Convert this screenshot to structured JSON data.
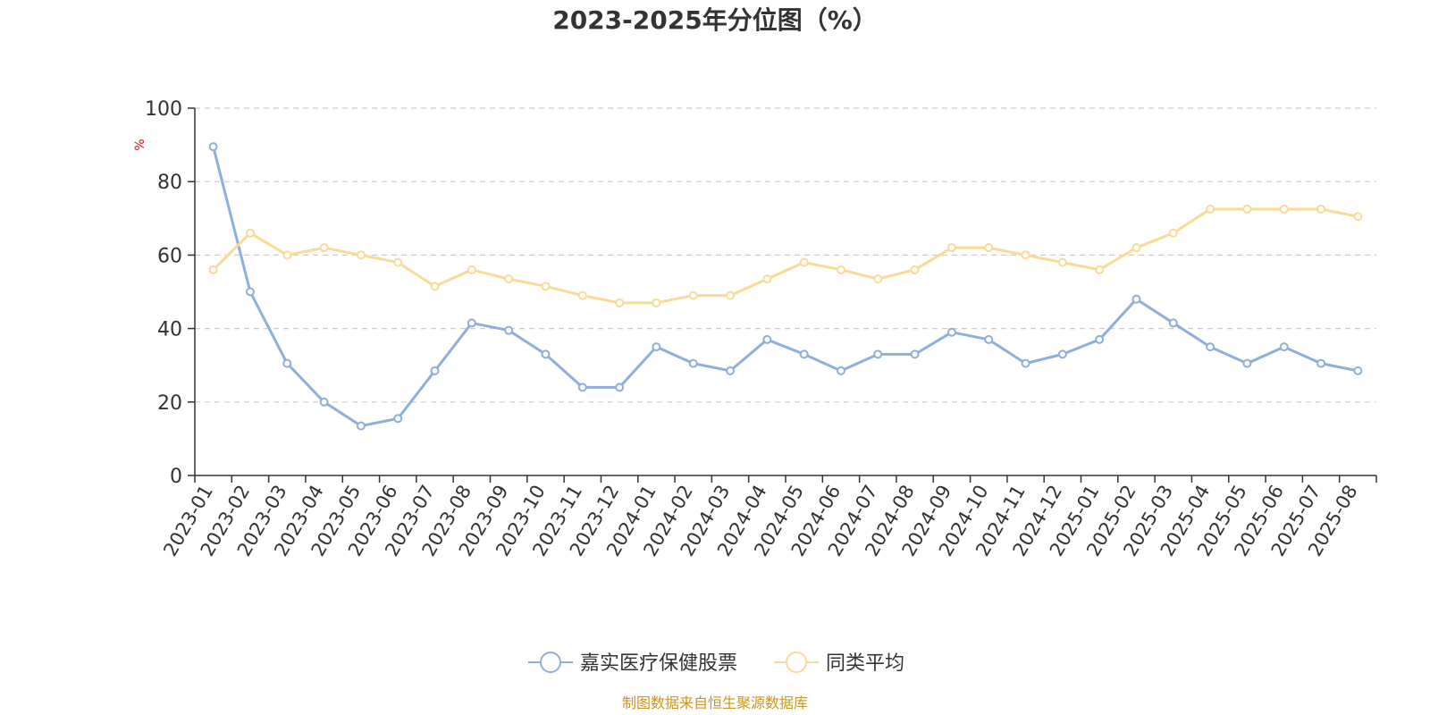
{
  "chart_data": {
    "type": "line",
    "title": "2023-2025年分位图（%）",
    "ylabel": "%",
    "ylim": [
      0,
      100
    ],
    "yticks": [
      0,
      20,
      40,
      60,
      80,
      100
    ],
    "categories": [
      "2023-01",
      "2023-02",
      "2023-03",
      "2023-04",
      "2023-05",
      "2023-06",
      "2023-07",
      "2023-08",
      "2023-09",
      "2023-10",
      "2023-11",
      "2023-12",
      "2024-01",
      "2024-02",
      "2024-03",
      "2024-04",
      "2024-05",
      "2024-06",
      "2024-07",
      "2024-08",
      "2024-09",
      "2024-10",
      "2024-11",
      "2024-12",
      "2025-01",
      "2025-02",
      "2025-03",
      "2025-04",
      "2025-05",
      "2025-06",
      "2025-07",
      "2025-08"
    ],
    "series": [
      {
        "name": "嘉实医疗保健股票",
        "color": "#8eaedb",
        "values": [
          89.5,
          50.0,
          30.5,
          20.0,
          13.5,
          15.5,
          28.5,
          41.5,
          39.5,
          33.0,
          24.0,
          24.0,
          35.0,
          30.5,
          28.5,
          37.0,
          33.0,
          28.5,
          33.0,
          33.0,
          39.0,
          37.0,
          30.5,
          33.0,
          37.0,
          48.0,
          41.5,
          35.0,
          30.5,
          35.0,
          30.5,
          28.5
        ]
      },
      {
        "name": "同类平均",
        "color": "#fbd996",
        "values": [
          56.0,
          66.0,
          60.0,
          62.0,
          60.0,
          58.0,
          51.5,
          56.0,
          53.5,
          51.5,
          49.0,
          47.0,
          47.0,
          49.0,
          49.0,
          53.5,
          58.0,
          56.0,
          53.5,
          56.0,
          62.0,
          62.0,
          60.0,
          58.0,
          56.0,
          62.0,
          66.0,
          72.5,
          72.5,
          72.5,
          72.5,
          70.5
        ]
      }
    ],
    "grid": true,
    "legend_position": "bottom-center"
  },
  "source_note": "制图数据来自恒生聚源数据库"
}
